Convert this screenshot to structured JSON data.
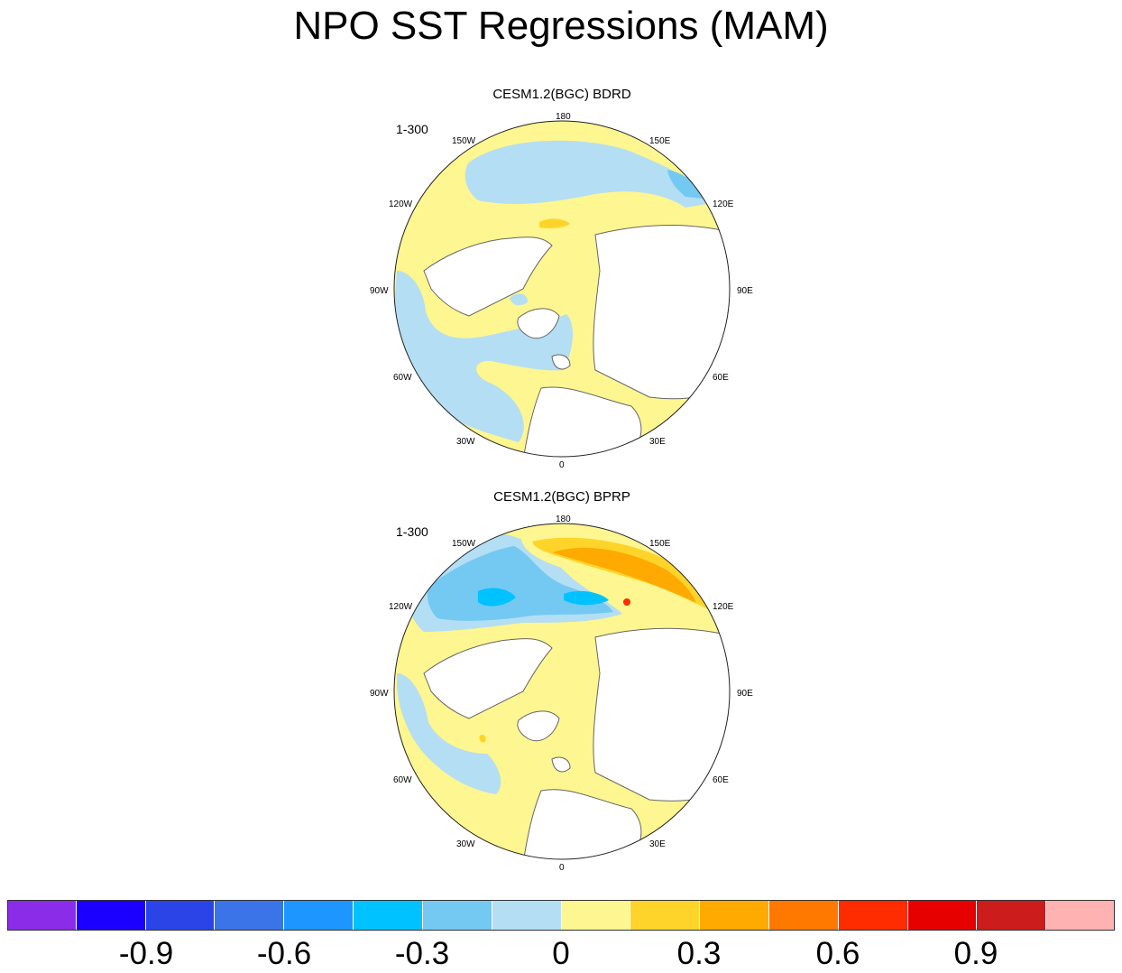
{
  "title": "NPO SST Regressions (MAM)",
  "panels": [
    {
      "title": "CESM1.2(BGC) BDRD",
      "period": "1-300",
      "lon_labels": {
        "top": "180",
        "bottom": "0",
        "left": "90W",
        "right": "90E",
        "upper_left_1": "150W",
        "upper_left_2": "120W",
        "upper_right_1": "150E",
        "upper_right_2": "120E",
        "lower_left_1": "60W",
        "lower_left_2": "30W",
        "lower_right_1": "60E",
        "lower_right_2": "30E"
      }
    },
    {
      "title": "CESM1.2(BGC) BPRP",
      "period": "1-300",
      "lon_labels": {
        "top": "180",
        "bottom": "0",
        "left": "90W",
        "right": "90E",
        "upper_left_1": "150W",
        "upper_left_2": "120W",
        "upper_right_1": "150E",
        "upper_right_2": "120E",
        "lower_left_1": "60W",
        "lower_left_2": "30W",
        "lower_right_1": "60E",
        "lower_right_2": "30E"
      }
    }
  ],
  "colorbar": {
    "colors": [
      "#8b2ce8",
      "#1b00ff",
      "#2a44e8",
      "#3a74e8",
      "#1e96ff",
      "#00c2ff",
      "#74c9f2",
      "#b4def3",
      "#fef690",
      "#ffd42a",
      "#ffaa00",
      "#ff7800",
      "#ff2c00",
      "#e60000",
      "#cc1c1c",
      "#ffb2b2"
    ],
    "tick_labels": [
      "-0.9",
      "-0.6",
      "-0.3",
      "0",
      "0.3",
      "0.6",
      "0.9"
    ],
    "tick_values": [
      -0.9,
      -0.6,
      -0.3,
      0,
      0.3,
      0.6,
      0.9
    ]
  }
}
